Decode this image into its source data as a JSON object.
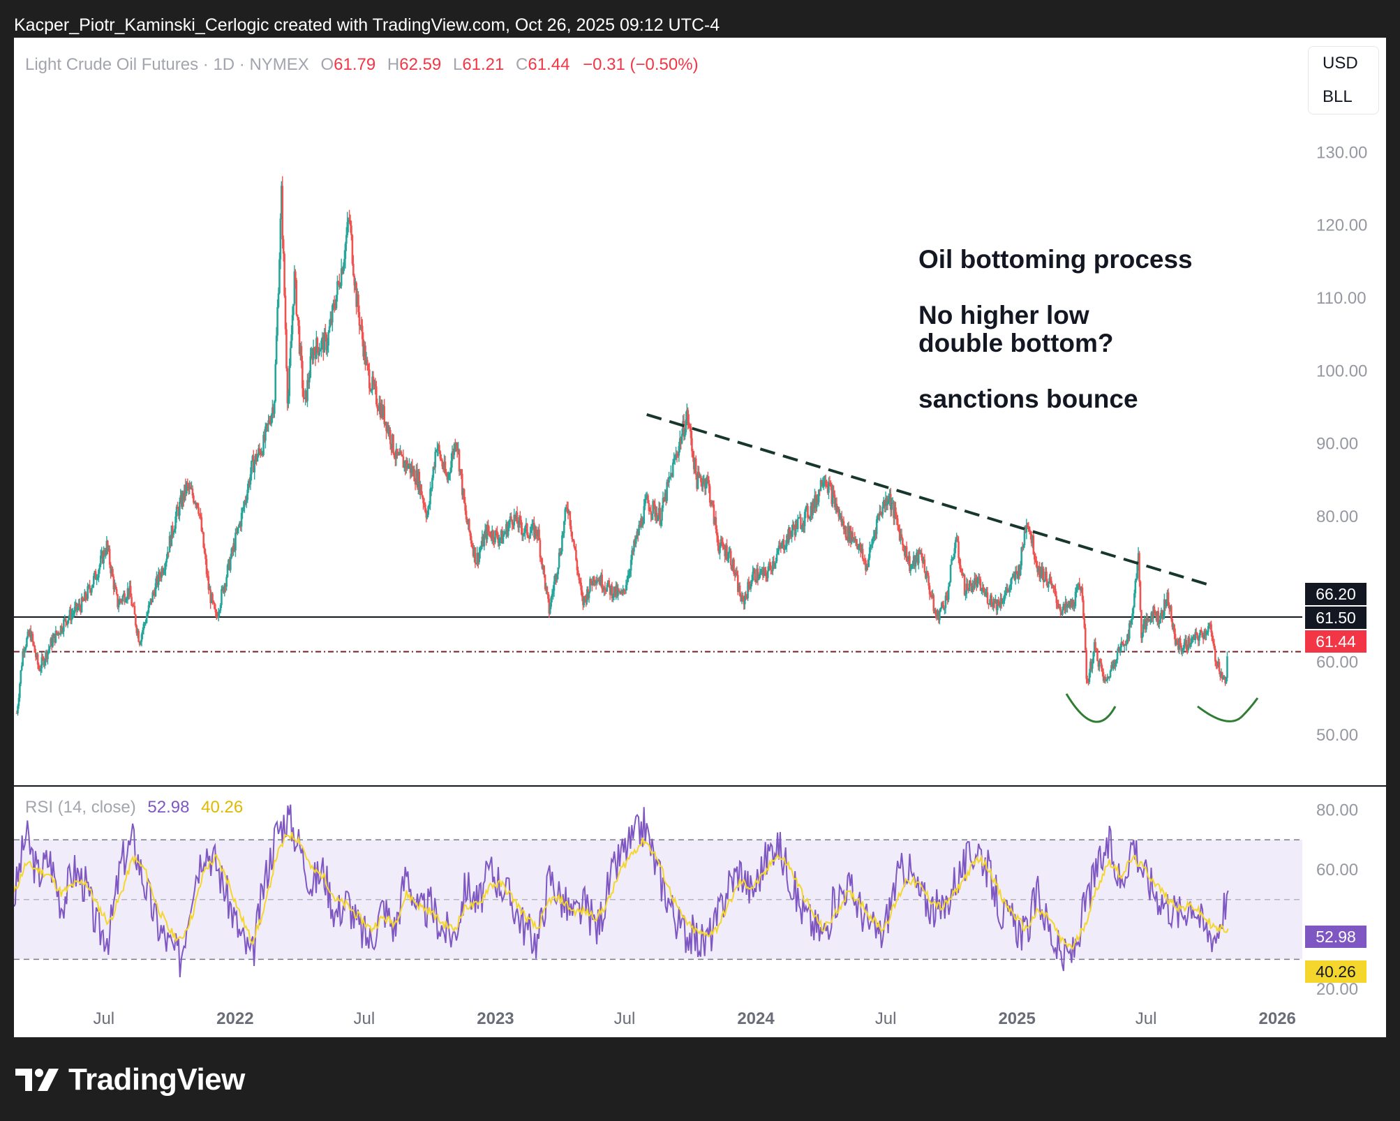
{
  "caption": "Kacper_Piotr_Kaminski_Cerlogic created with TradingView.com, Oct 26, 2025 09:12 UTC-4",
  "header": {
    "symbol": "Light Crude Oil Futures · 1D · NYMEX",
    "open_label": "O",
    "open": "61.79",
    "high_label": "H",
    "high": "62.59",
    "low_label": "L",
    "low": "61.21",
    "close_label": "C",
    "close": "61.44",
    "change": "−0.31 (−0.50%)"
  },
  "currency": {
    "ccy": "USD",
    "unit": "BLL"
  },
  "annotations": {
    "line1": "Oil bottoming process",
    "line2": "No higher low",
    "line3": "double bottom?",
    "line4": "sanctions bounce"
  },
  "price_labels": {
    "level_a": "66.20",
    "level_b": "61.50",
    "last": "61.44"
  },
  "rsi": {
    "label": "RSI (14, close)",
    "value": "52.98",
    "ma": "40.26"
  },
  "brand": "TradingView",
  "colors": {
    "up": "#26a69a",
    "down": "#ef5350",
    "rsi_line": "#7e57c2",
    "rsi_ma": "#f5d62c",
    "rsi_band": "#f0ecfa",
    "last_price": "#f23645",
    "trend": "#17362c",
    "bottom_arc": "#2e7d32"
  },
  "chart_data": [
    {
      "type": "candlestick",
      "title": "Light Crude Oil Futures · 1D · NYMEX",
      "x_ticks": [
        "Jul",
        "2022",
        "Jul",
        "2023",
        "Jul",
        "2024",
        "Jul",
        "2025",
        "Jul",
        "2026"
      ],
      "y_ticks": [
        "130.00",
        "120.00",
        "110.00",
        "100.00",
        "90.00",
        "80.00",
        "70.00",
        "60.00",
        "50.00"
      ],
      "ylim": [
        43,
        140
      ],
      "xlim": [
        "2021-02-25",
        "2026-02-05"
      ],
      "horizontal_lines": [
        66.2,
        61.5
      ],
      "last_price": 61.44,
      "trendline": {
        "from": [
          "2023-08-01",
          94
        ],
        "to": [
          "2025-10-01",
          70.5
        ]
      },
      "price_series": [
        [
          "2021-03-01",
          53
        ],
        [
          "2021-03-10",
          62
        ],
        [
          "2021-03-20",
          64
        ],
        [
          "2021-04-01",
          59
        ],
        [
          "2021-04-20",
          63
        ],
        [
          "2021-05-10",
          66
        ],
        [
          "2021-06-01",
          68
        ],
        [
          "2021-06-20",
          72
        ],
        [
          "2021-07-05",
          76
        ],
        [
          "2021-07-20",
          68
        ],
        [
          "2021-08-05",
          70
        ],
        [
          "2021-08-20",
          63
        ],
        [
          "2021-09-10",
          70
        ],
        [
          "2021-09-25",
          74
        ],
        [
          "2021-10-10",
          80
        ],
        [
          "2021-10-25",
          84
        ],
        [
          "2021-11-10",
          82
        ],
        [
          "2021-11-25",
          70
        ],
        [
          "2021-12-05",
          66
        ],
        [
          "2021-12-20",
          72
        ],
        [
          "2022-01-10",
          80
        ],
        [
          "2022-01-25",
          87
        ],
        [
          "2022-02-10",
          90
        ],
        [
          "2022-02-25",
          96
        ],
        [
          "2022-03-07",
          124
        ],
        [
          "2022-03-16",
          95
        ],
        [
          "2022-03-25",
          113
        ],
        [
          "2022-04-08",
          95
        ],
        [
          "2022-04-20",
          103
        ],
        [
          "2022-05-10",
          104
        ],
        [
          "2022-06-01",
          115
        ],
        [
          "2022-06-10",
          121
        ],
        [
          "2022-06-20",
          110
        ],
        [
          "2022-07-05",
          100
        ],
        [
          "2022-07-15",
          97
        ],
        [
          "2022-08-01",
          93
        ],
        [
          "2022-08-15",
          88
        ],
        [
          "2022-09-01",
          87
        ],
        [
          "2022-09-15",
          85
        ],
        [
          "2022-09-28",
          80
        ],
        [
          "2022-10-10",
          90
        ],
        [
          "2022-10-25",
          85
        ],
        [
          "2022-11-07",
          91
        ],
        [
          "2022-11-20",
          80
        ],
        [
          "2022-12-05",
          74
        ],
        [
          "2022-12-20",
          78
        ],
        [
          "2023-01-10",
          77
        ],
        [
          "2023-01-25",
          80
        ],
        [
          "2023-02-10",
          78
        ],
        [
          "2023-03-01",
          78
        ],
        [
          "2023-03-17",
          67
        ],
        [
          "2023-04-01",
          75
        ],
        [
          "2023-04-12",
          82
        ],
        [
          "2023-05-03",
          68
        ],
        [
          "2023-05-20",
          72
        ],
        [
          "2023-06-10",
          70
        ],
        [
          "2023-06-28",
          69
        ],
        [
          "2023-07-15",
          76
        ],
        [
          "2023-08-01",
          82
        ],
        [
          "2023-08-20",
          80
        ],
        [
          "2023-09-10",
          88
        ],
        [
          "2023-09-27",
          94
        ],
        [
          "2023-10-10",
          85
        ],
        [
          "2023-10-25",
          85
        ],
        [
          "2023-11-10",
          76
        ],
        [
          "2023-11-25",
          75
        ],
        [
          "2023-12-13",
          68
        ],
        [
          "2023-12-28",
          72
        ],
        [
          "2024-01-15",
          72
        ],
        [
          "2024-02-01",
          75
        ],
        [
          "2024-02-20",
          78
        ],
        [
          "2024-03-10",
          80
        ],
        [
          "2024-03-25",
          82
        ],
        [
          "2024-04-05",
          86
        ],
        [
          "2024-04-20",
          82
        ],
        [
          "2024-05-05",
          78
        ],
        [
          "2024-05-20",
          77
        ],
        [
          "2024-06-04",
          73
        ],
        [
          "2024-06-20",
          80
        ],
        [
          "2024-07-05",
          83
        ],
        [
          "2024-07-20",
          78
        ],
        [
          "2024-08-05",
          73
        ],
        [
          "2024-08-20",
          75
        ],
        [
          "2024-09-10",
          66
        ],
        [
          "2024-09-25",
          69
        ],
        [
          "2024-10-07",
          77
        ],
        [
          "2024-10-20",
          70
        ],
        [
          "2024-11-05",
          71
        ],
        [
          "2024-11-20",
          69
        ],
        [
          "2024-12-05",
          68
        ],
        [
          "2024-12-20",
          70
        ],
        [
          "2025-01-05",
          73
        ],
        [
          "2025-01-15",
          80
        ],
        [
          "2025-01-30",
          73
        ],
        [
          "2025-02-15",
          71
        ],
        [
          "2025-03-05",
          67
        ],
        [
          "2025-03-20",
          68
        ],
        [
          "2025-04-02",
          71
        ],
        [
          "2025-04-09",
          57
        ],
        [
          "2025-04-20",
          62
        ],
        [
          "2025-05-05",
          57
        ],
        [
          "2025-05-20",
          61
        ],
        [
          "2025-06-02",
          63
        ],
        [
          "2025-06-10",
          65
        ],
        [
          "2025-06-20",
          75
        ],
        [
          "2025-06-24",
          64
        ],
        [
          "2025-07-10",
          67
        ],
        [
          "2025-07-20",
          66
        ],
        [
          "2025-08-01",
          69
        ],
        [
          "2025-08-10",
          63
        ],
        [
          "2025-08-20",
          62
        ],
        [
          "2025-09-05",
          63
        ],
        [
          "2025-09-20",
          64
        ],
        [
          "2025-09-28",
          65
        ],
        [
          "2025-10-05",
          61
        ],
        [
          "2025-10-20",
          57
        ],
        [
          "2025-10-24",
          61.44
        ]
      ]
    },
    {
      "type": "line",
      "title": "RSI (14, close)",
      "y_ticks": [
        "80.00",
        "60.00",
        "20.00"
      ],
      "ylim": [
        17,
        88
      ],
      "bands": [
        30,
        50,
        70
      ],
      "series": [
        {
          "name": "RSI",
          "values": [
            50,
            72,
            58,
            64,
            48,
            60,
            55,
            40,
            38,
            62,
            70,
            55,
            42,
            35,
            30,
            55,
            68,
            62,
            50,
            38,
            30,
            55,
            72,
            78,
            68,
            55,
            60,
            45,
            50,
            40,
            36,
            48,
            40,
            60,
            45,
            48,
            40,
            38,
            55,
            48,
            60,
            55,
            48,
            40,
            36,
            58,
            50,
            44,
            48,
            40,
            55,
            65,
            70,
            75,
            60,
            50,
            40,
            38,
            35,
            42,
            55,
            60,
            52,
            62,
            70,
            60,
            48,
            42,
            38,
            50,
            55,
            48,
            40,
            38,
            55,
            62,
            52,
            48,
            45,
            56,
            62,
            68,
            58,
            45,
            42,
            38,
            52,
            40,
            30,
            32,
            48,
            60,
            68,
            55,
            70,
            58,
            52,
            48,
            45,
            50,
            40,
            38,
            52.98
          ]
        },
        {
          "name": "MA",
          "values": [
            52,
            62,
            60,
            58,
            52,
            55,
            56,
            48,
            42,
            52,
            64,
            60,
            48,
            40,
            36,
            45,
            60,
            64,
            56,
            45,
            36,
            46,
            64,
            72,
            70,
            60,
            58,
            50,
            48,
            44,
            40,
            44,
            42,
            52,
            48,
            46,
            42,
            40,
            48,
            48,
            55,
            55,
            50,
            44,
            40,
            50,
            50,
            46,
            46,
            44,
            50,
            60,
            66,
            70,
            64,
            54,
            45,
            40,
            38,
            40,
            48,
            56,
            54,
            58,
            65,
            62,
            54,
            46,
            40,
            45,
            52,
            50,
            44,
            40,
            48,
            57,
            55,
            50,
            47,
            52,
            58,
            64,
            60,
            50,
            45,
            40,
            46,
            44,
            36,
            34,
            42,
            54,
            63,
            58,
            64,
            60,
            55,
            50,
            47,
            48,
            44,
            40,
            40.26
          ]
        }
      ]
    }
  ]
}
